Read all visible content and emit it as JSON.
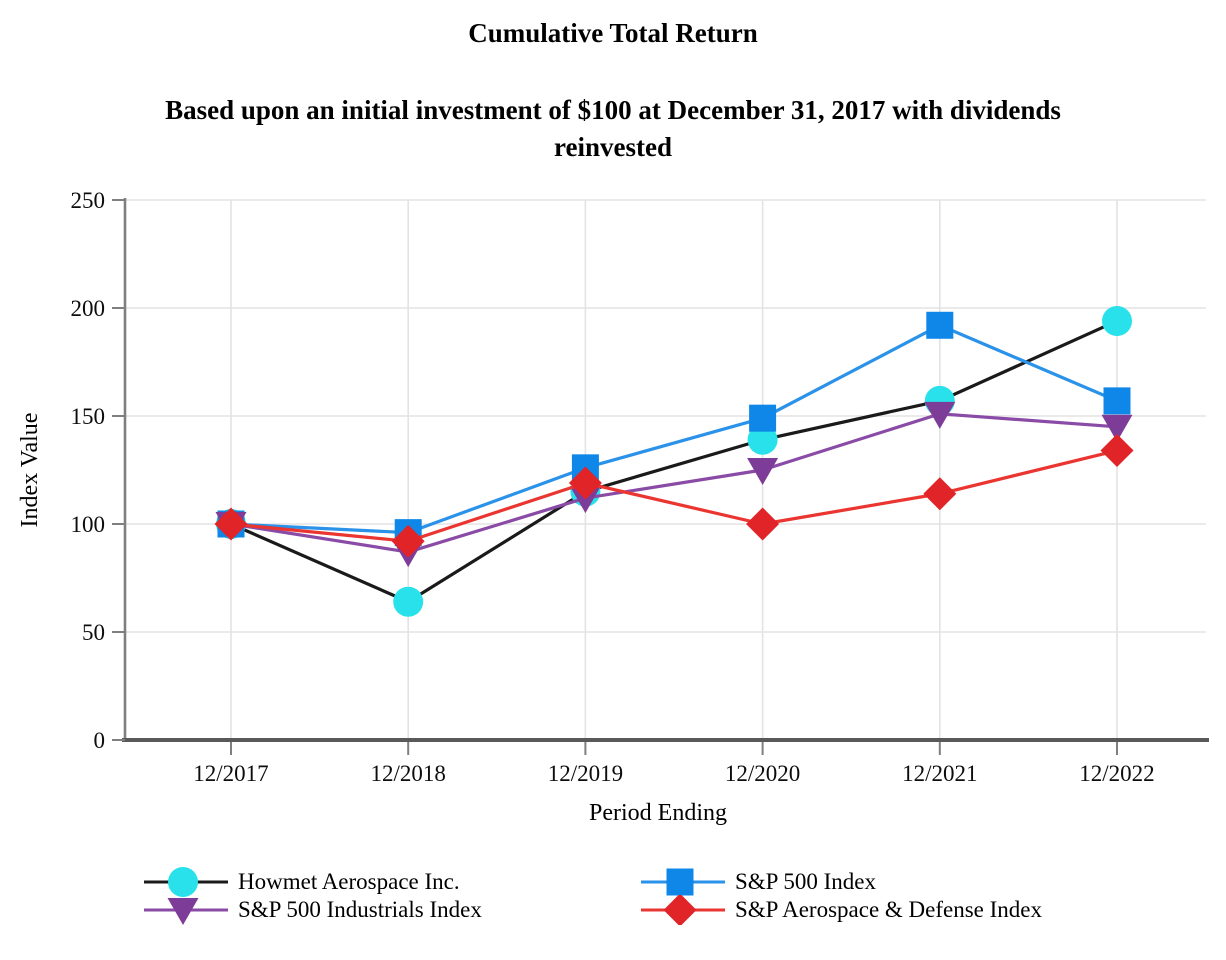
{
  "title": "Cumulative Total Return",
  "subtitle": "Based upon an initial investment of $100 at December 31, 2017 with dividends\nreinvested",
  "chart_data": {
    "type": "line",
    "title": "Cumulative Total Return",
    "xlabel": "Period Ending",
    "ylabel": "Index Value",
    "categories": [
      "12/2017",
      "12/2018",
      "12/2019",
      "12/2020",
      "12/2021",
      "12/2022"
    ],
    "y_ticks": [
      0,
      50,
      100,
      150,
      200,
      250
    ],
    "ylim": [
      0,
      250
    ],
    "grid": true,
    "legend_position": "bottom",
    "colors": {
      "gridline": "#e3e3e3",
      "y_axis": "#7f7f7f",
      "x_axis": "#595959",
      "tick": "#7f7f7f",
      "text": "#0d0d0d"
    },
    "series": [
      {
        "name": "Howmet Aerospace Inc.",
        "values": [
          100,
          64,
          115,
          139,
          157,
          194
        ],
        "color": "#1a1a1a",
        "marker": "circle",
        "marker_color": "#29e1ea"
      },
      {
        "name": "S&P 500 Index",
        "values": [
          100,
          96,
          126,
          149,
          192,
          157
        ],
        "color": "#2a92e8",
        "marker": "square",
        "marker_color": "#0f87e8"
      },
      {
        "name": "S&P 500 Industrials Index",
        "values": [
          100,
          87,
          112,
          125,
          151,
          145
        ],
        "color": "#8a4ba6",
        "marker": "triangle-down",
        "marker_color": "#7d3c98"
      },
      {
        "name": "S&P Aerospace & Defense Index",
        "values": [
          100,
          92,
          119,
          100,
          114,
          134
        ],
        "color": "#ea3530",
        "marker": "diamond",
        "marker_color": "#e02428"
      }
    ]
  }
}
